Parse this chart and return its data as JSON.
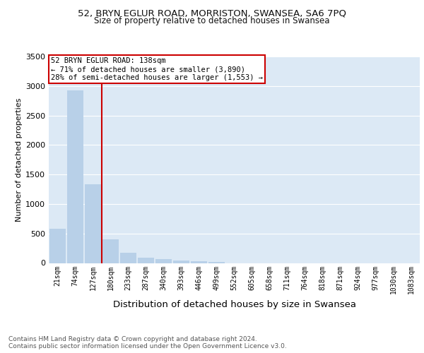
{
  "title_line1": "52, BRYN EGLUR ROAD, MORRISTON, SWANSEA, SA6 7PQ",
  "title_line2": "Size of property relative to detached houses in Swansea",
  "xlabel": "Distribution of detached houses by size in Swansea",
  "ylabel": "Number of detached properties",
  "categories": [
    "21sqm",
    "74sqm",
    "127sqm",
    "180sqm",
    "233sqm",
    "287sqm",
    "340sqm",
    "393sqm",
    "446sqm",
    "499sqm",
    "552sqm",
    "605sqm",
    "658sqm",
    "711sqm",
    "764sqm",
    "818sqm",
    "871sqm",
    "924sqm",
    "977sqm",
    "1030sqm",
    "1083sqm"
  ],
  "values": [
    580,
    2920,
    1340,
    400,
    170,
    95,
    60,
    40,
    28,
    20,
    0,
    0,
    0,
    0,
    0,
    0,
    0,
    0,
    0,
    0,
    0
  ],
  "bar_color": "#b8d0e8",
  "vline_color": "#cc0000",
  "vline_bar_index": 2,
  "annotation_text": "52 BRYN EGLUR ROAD: 138sqm\n← 71% of detached houses are smaller (3,890)\n28% of semi-detached houses are larger (1,553) →",
  "annotation_box_color": "#ffffff",
  "annotation_box_edge": "#cc0000",
  "ylim": [
    0,
    3500
  ],
  "yticks": [
    0,
    500,
    1000,
    1500,
    2000,
    2500,
    3000,
    3500
  ],
  "background_color": "#dce9f5",
  "footer_line1": "Contains HM Land Registry data © Crown copyright and database right 2024.",
  "footer_line2": "Contains public sector information licensed under the Open Government Licence v3.0.",
  "title_fontsize": 9.5,
  "subtitle_fontsize": 8.5,
  "xlabel_fontsize": 9.5,
  "ylabel_fontsize": 8,
  "tick_fontsize": 7,
  "annotation_fontsize": 7.5,
  "footer_fontsize": 6.5
}
